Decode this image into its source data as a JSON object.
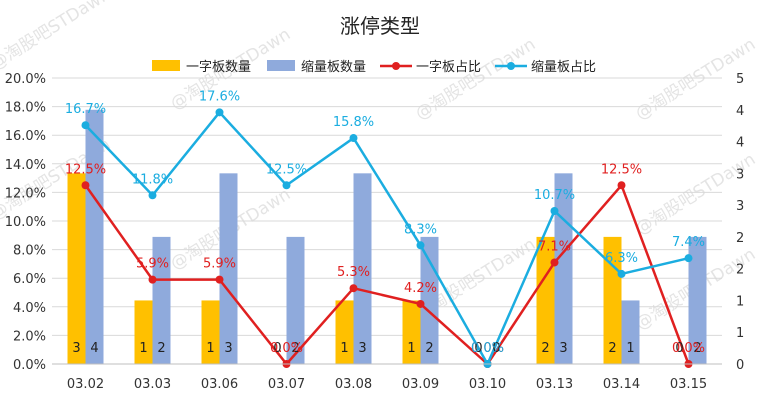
{
  "chart_data": {
    "type": "bar",
    "title": "涨停类型",
    "categories": [
      "03.02",
      "03.03",
      "03.06",
      "03.07",
      "03.08",
      "03.09",
      "03.10",
      "03.13",
      "03.14",
      "03.15"
    ],
    "series": [
      {
        "name": "一字板数量",
        "kind": "bar",
        "axis": "right",
        "color": "#FFC000",
        "values": [
          3,
          1,
          1,
          0,
          1,
          1,
          0,
          2,
          2,
          0
        ]
      },
      {
        "name": "缩量板数量",
        "kind": "bar",
        "axis": "right",
        "color": "#8FAADC",
        "values": [
          4,
          2,
          3,
          2,
          3,
          2,
          0,
          3,
          1,
          2
        ]
      },
      {
        "name": "一字板占比",
        "kind": "line",
        "axis": "left",
        "color": "#E02020",
        "values": [
          12.5,
          5.9,
          5.9,
          0.0,
          5.3,
          4.2,
          0.0,
          7.1,
          12.5,
          0.0
        ]
      },
      {
        "name": "缩量板占比",
        "kind": "line",
        "axis": "left",
        "color": "#1BADE0",
        "values": [
          16.7,
          11.8,
          17.6,
          12.5,
          15.8,
          8.3,
          0.0,
          10.7,
          6.3,
          7.4
        ]
      }
    ],
    "bar_count_labels_a": [
      "3",
      "1",
      "1",
      "0",
      "1",
      "1",
      "0",
      "2",
      "2",
      "0"
    ],
    "bar_count_labels_b": [
      "4",
      "2",
      "3",
      "2",
      "3",
      "2",
      "0",
      "3",
      "1",
      "2"
    ],
    "red_labels": [
      "12.5%",
      "5.9%",
      "5.9%",
      "0.0%",
      "5.3%",
      "4.2%",
      "0.0%",
      "7.1%",
      "12.5%",
      "0.0%"
    ],
    "blue_labels": [
      "16.7%",
      "11.8%",
      "17.6%",
      "12.5%",
      "15.8%",
      "8.3%",
      "0.0%",
      "10.7%",
      "6.3%",
      "7.4%"
    ],
    "left_axis": {
      "ylim": [
        0,
        20
      ],
      "ticks": [
        0,
        2,
        4,
        6,
        8,
        10,
        12,
        14,
        16,
        18,
        20
      ],
      "labels": [
        "0.0%",
        "2.0%",
        "4.0%",
        "6.0%",
        "8.0%",
        "10.0%",
        "12.0%",
        "14.0%",
        "16.0%",
        "18.0%",
        "20.0%"
      ]
    },
    "right_axis": {
      "ylim": [
        0,
        4.5
      ],
      "ticks": [
        0,
        0.5,
        1,
        1.5,
        2,
        2.5,
        3,
        3.5,
        4,
        4.5
      ],
      "labels": [
        "0",
        "1",
        "1",
        "2",
        "2",
        "3",
        "3",
        "4",
        "4",
        "5"
      ]
    },
    "grid": true,
    "legend_position": "top",
    "watermark": "@淘股吧STDawn"
  }
}
